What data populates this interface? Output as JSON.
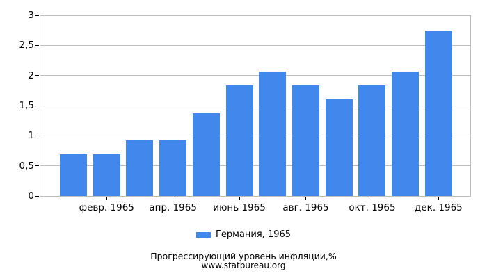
{
  "chart_data": {
    "type": "bar",
    "title": "Прогрессирующий уровень инфляции,%",
    "source": "www.statbureau.org",
    "series": [
      {
        "name": "Германия, 1965",
        "values": [
          0.69,
          0.69,
          0.92,
          0.92,
          1.37,
          1.83,
          2.06,
          1.83,
          1.6,
          1.83,
          2.06,
          2.75
        ]
      }
    ],
    "num_categories": 12,
    "x_tick_labels": [
      "февр. 1965",
      "апр. 1965",
      "июнь 1965",
      "авг. 1965",
      "окт. 1965",
      "дек. 1965"
    ],
    "x_tick_category_indexes": [
      1,
      3,
      5,
      7,
      9,
      11
    ],
    "y_ticks": [
      0,
      0.5,
      1,
      1.5,
      2,
      2.5,
      3
    ],
    "y_tick_labels": [
      "0",
      "0,5",
      "1",
      "1,5",
      "2",
      "2,5",
      "3"
    ],
    "ylim": [
      0,
      3
    ],
    "grid": true,
    "legend_position": "bottom",
    "colors": {
      "bar": "#4288ec",
      "grid": "#bdbdbd",
      "tick": "#000000",
      "text": "#000000",
      "background": "#ffffff"
    }
  }
}
